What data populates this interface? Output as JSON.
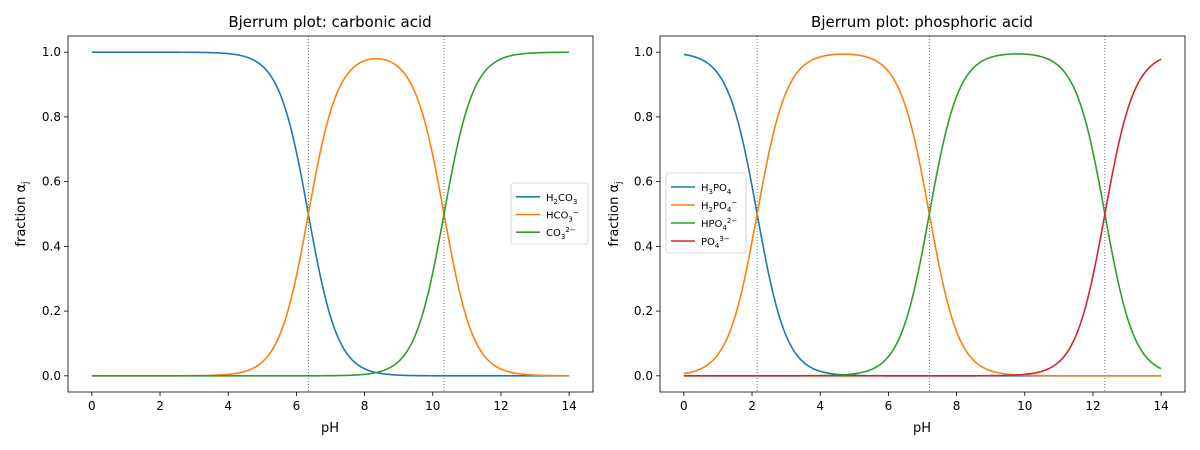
{
  "chart_data": [
    {
      "type": "line",
      "title": "Bjerrum plot: carbonic acid",
      "xlabel": "pH",
      "ylabel": "fraction α",
      "ylabel_subscript": "j",
      "xlim": [
        -0.7,
        14.7
      ],
      "ylim": [
        -0.05,
        1.05
      ],
      "xticks": [
        "0",
        "2",
        "4",
        "6",
        "8",
        "10",
        "12",
        "14"
      ],
      "yticks": [
        "0.0",
        "0.2",
        "0.4",
        "0.6",
        "0.8",
        "1.0"
      ],
      "grid": false,
      "legend_position": "center-right",
      "pKa": [
        6.35,
        10.33
      ],
      "vlines": [
        6.35,
        10.33
      ],
      "x_range": [
        0,
        14
      ],
      "series": [
        {
          "name": "H₂CO₃",
          "color": "#1f77b4",
          "legend": {
            "parts": [
              {
                "t": "H"
              },
              {
                "t": "2",
                "s": "sub"
              },
              {
                "t": "CO"
              },
              {
                "t": "3",
                "s": "sub"
              }
            ]
          }
        },
        {
          "name": "HCO₃⁻",
          "color": "#ff7f0e",
          "legend": {
            "parts": [
              {
                "t": "HCO"
              },
              {
                "t": "3",
                "s": "sub"
              },
              {
                "t": "−",
                "s": "sup"
              }
            ]
          }
        },
        {
          "name": "CO₃²⁻",
          "color": "#2ca02c",
          "legend": {
            "parts": [
              {
                "t": "CO"
              },
              {
                "t": "3",
                "s": "sub"
              },
              {
                "t": "2−",
                "s": "sup"
              }
            ]
          }
        }
      ]
    },
    {
      "type": "line",
      "title": "Bjerrum plot: phosphoric acid",
      "xlabel": "pH",
      "ylabel": "fraction α",
      "ylabel_subscript": "j",
      "xlim": [
        -0.7,
        14.7
      ],
      "ylim": [
        -0.05,
        1.05
      ],
      "xticks": [
        "0",
        "2",
        "4",
        "6",
        "8",
        "10",
        "12",
        "14"
      ],
      "yticks": [
        "0.0",
        "0.2",
        "0.4",
        "0.6",
        "0.8",
        "1.0"
      ],
      "grid": false,
      "legend_position": "center-left",
      "pKa": [
        2.15,
        7.2,
        12.35
      ],
      "vlines": [
        2.15,
        7.2,
        12.35
      ],
      "x_range": [
        0,
        14
      ],
      "series": [
        {
          "name": "H₃PO₄",
          "color": "#1f77b4",
          "legend": {
            "parts": [
              {
                "t": "H"
              },
              {
                "t": "3",
                "s": "sub"
              },
              {
                "t": "PO"
              },
              {
                "t": "4",
                "s": "sub"
              }
            ]
          }
        },
        {
          "name": "H₂PO₄⁻",
          "color": "#ff7f0e",
          "legend": {
            "parts": [
              {
                "t": "H"
              },
              {
                "t": "2",
                "s": "sub"
              },
              {
                "t": "PO"
              },
              {
                "t": "4",
                "s": "sub"
              },
              {
                "t": "−",
                "s": "sup"
              }
            ]
          }
        },
        {
          "name": "HPO₄²⁻",
          "color": "#2ca02c",
          "legend": {
            "parts": [
              {
                "t": "HPO"
              },
              {
                "t": "4",
                "s": "sub"
              },
              {
                "t": "2−",
                "s": "sup"
              }
            ]
          }
        },
        {
          "name": "PO₄³⁻",
          "color": "#d62728",
          "legend": {
            "parts": [
              {
                "t": "PO"
              },
              {
                "t": "4",
                "s": "sub"
              },
              {
                "t": "3−",
                "s": "sup"
              }
            ]
          }
        }
      ]
    }
  ]
}
